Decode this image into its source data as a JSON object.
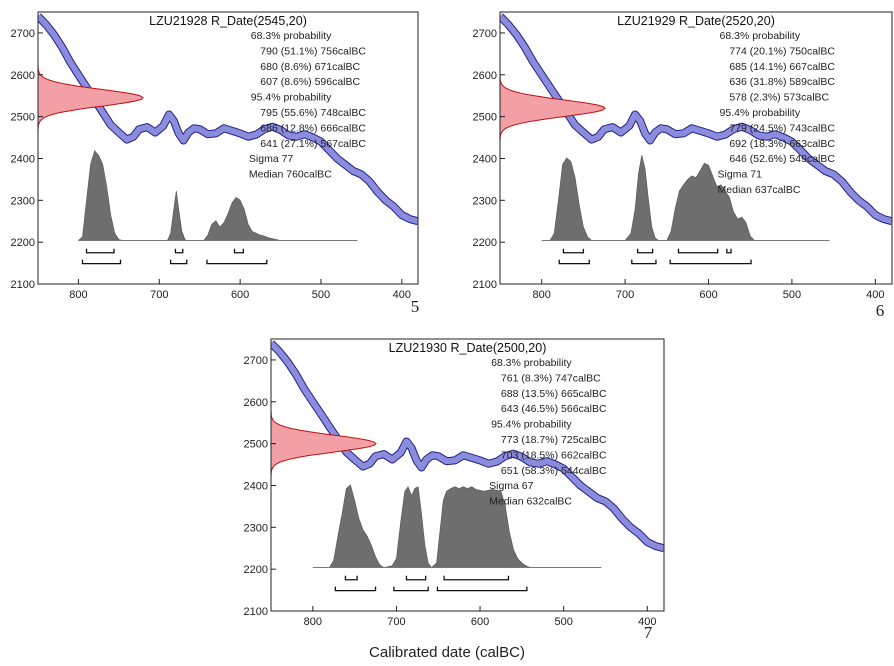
{
  "figure": {
    "xlabel": "Calibrated date (calBC)"
  },
  "chart_data": [
    {
      "type": "area",
      "panel_number": "5",
      "title": "LZU21928 R_Date(2545,20)",
      "xlim": [
        850,
        380
      ],
      "ylim": [
        2100,
        2750
      ],
      "x_ticks": [
        800,
        700,
        600,
        500,
        400
      ],
      "y_ticks": [
        2100,
        2200,
        2300,
        2400,
        2500,
        2600,
        2700
      ],
      "radiocarbon_date": {
        "mean": 2545,
        "error": 20
      },
      "annotation_lines": [
        "68.3% probability",
        "790 (51.1%) 756calBC",
        "680 (8.6%) 671calBC",
        "607 (8.6%) 596calBC",
        "95.4% probability",
        "795 (55.6%) 748calBC",
        "686 (12.8%) 666calBC",
        "641 (27.1%) 567calBC",
        "Sigma 77",
        "Median 760calBC"
      ],
      "calibration_curve": [
        [
          850,
          2740
        ],
        [
          840,
          2720
        ],
        [
          830,
          2695
        ],
        [
          820,
          2665
        ],
        [
          810,
          2630
        ],
        [
          800,
          2600
        ],
        [
          790,
          2570
        ],
        [
          780,
          2540
        ],
        [
          770,
          2510
        ],
        [
          760,
          2480
        ],
        [
          750,
          2462
        ],
        [
          740,
          2445
        ],
        [
          732,
          2452
        ],
        [
          725,
          2470
        ],
        [
          715,
          2475
        ],
        [
          705,
          2462
        ],
        [
          695,
          2478
        ],
        [
          688,
          2505
        ],
        [
          682,
          2490
        ],
        [
          676,
          2460
        ],
        [
          670,
          2443
        ],
        [
          664,
          2462
        ],
        [
          657,
          2472
        ],
        [
          650,
          2470
        ],
        [
          640,
          2458
        ],
        [
          630,
          2460
        ],
        [
          620,
          2472
        ],
        [
          610,
          2466
        ],
        [
          600,
          2460
        ],
        [
          590,
          2452
        ],
        [
          580,
          2457
        ],
        [
          570,
          2470
        ],
        [
          560,
          2476
        ],
        [
          550,
          2468
        ],
        [
          540,
          2455
        ],
        [
          530,
          2452
        ],
        [
          520,
          2458
        ],
        [
          510,
          2450
        ],
        [
          500,
          2440
        ],
        [
          490,
          2420
        ],
        [
          480,
          2400
        ],
        [
          470,
          2385
        ],
        [
          460,
          2370
        ],
        [
          450,
          2362
        ],
        [
          440,
          2345
        ],
        [
          430,
          2320
        ],
        [
          420,
          2300
        ],
        [
          410,
          2285
        ],
        [
          400,
          2265
        ],
        [
          390,
          2255
        ],
        [
          380,
          2250
        ]
      ],
      "calibrated_distribution": [
        [
          800,
          0
        ],
        [
          795,
          0.04
        ],
        [
          790,
          0.45
        ],
        [
          785,
          0.85
        ],
        [
          780,
          1.0
        ],
        [
          775,
          0.95
        ],
        [
          770,
          0.85
        ],
        [
          765,
          0.6
        ],
        [
          760,
          0.28
        ],
        [
          755,
          0.08
        ],
        [
          750,
          0.01
        ],
        [
          745,
          0
        ],
        [
          740,
          0
        ],
        [
          700,
          0
        ],
        [
          690,
          0
        ],
        [
          686,
          0.08
        ],
        [
          682,
          0.35
        ],
        [
          679,
          0.55
        ],
        [
          676,
          0.35
        ],
        [
          672,
          0.1
        ],
        [
          668,
          0.01
        ],
        [
          665,
          0
        ],
        [
          645,
          0
        ],
        [
          640,
          0.06
        ],
        [
          635,
          0.18
        ],
        [
          630,
          0.22
        ],
        [
          625,
          0.15
        ],
        [
          620,
          0.2
        ],
        [
          615,
          0.3
        ],
        [
          610,
          0.42
        ],
        [
          605,
          0.48
        ],
        [
          600,
          0.45
        ],
        [
          595,
          0.35
        ],
        [
          590,
          0.18
        ],
        [
          585,
          0.1
        ],
        [
          580,
          0.08
        ],
        [
          575,
          0.06
        ],
        [
          570,
          0.05
        ],
        [
          565,
          0.03
        ],
        [
          560,
          0.02
        ],
        [
          555,
          0.01
        ],
        [
          550,
          0
        ]
      ],
      "range_68": [
        [
          790,
          756
        ],
        [
          680,
          671
        ],
        [
          607,
          596
        ]
      ],
      "range_95": [
        [
          795,
          748
        ],
        [
          686,
          666
        ],
        [
          641,
          567
        ]
      ]
    },
    {
      "type": "area",
      "panel_number": "6",
      "title": "LZU21929 R_Date(2520,20)",
      "xlim": [
        850,
        380
      ],
      "ylim": [
        2100,
        2750
      ],
      "x_ticks": [
        800,
        700,
        600,
        500,
        400
      ],
      "y_ticks": [
        2100,
        2200,
        2300,
        2400,
        2500,
        2600,
        2700
      ],
      "radiocarbon_date": {
        "mean": 2520,
        "error": 20
      },
      "annotation_lines": [
        "68.3% probability",
        "774 (20.1%) 750calBC",
        "685 (14.1%) 667calBC",
        "636 (31.8%) 589calBC",
        "578 (2.3%) 573calBC",
        "95.4% probability",
        "779 (24.5%) 743calBC",
        "692 (18.3%) 663calBC",
        "646 (52.6%) 549calBC",
        "Sigma 71",
        "Median 637calBC"
      ],
      "calibration_curve": [
        [
          850,
          2740
        ],
        [
          840,
          2720
        ],
        [
          830,
          2695
        ],
        [
          820,
          2665
        ],
        [
          810,
          2630
        ],
        [
          800,
          2600
        ],
        [
          790,
          2570
        ],
        [
          780,
          2540
        ],
        [
          770,
          2510
        ],
        [
          760,
          2480
        ],
        [
          750,
          2462
        ],
        [
          740,
          2445
        ],
        [
          732,
          2452
        ],
        [
          725,
          2470
        ],
        [
          715,
          2475
        ],
        [
          705,
          2462
        ],
        [
          695,
          2478
        ],
        [
          688,
          2505
        ],
        [
          682,
          2490
        ],
        [
          676,
          2460
        ],
        [
          670,
          2443
        ],
        [
          664,
          2462
        ],
        [
          657,
          2472
        ],
        [
          650,
          2470
        ],
        [
          640,
          2458
        ],
        [
          630,
          2460
        ],
        [
          620,
          2472
        ],
        [
          610,
          2466
        ],
        [
          600,
          2460
        ],
        [
          590,
          2452
        ],
        [
          580,
          2457
        ],
        [
          570,
          2470
        ],
        [
          560,
          2476
        ],
        [
          550,
          2468
        ],
        [
          540,
          2455
        ],
        [
          530,
          2452
        ],
        [
          520,
          2458
        ],
        [
          510,
          2450
        ],
        [
          500,
          2440
        ],
        [
          490,
          2420
        ],
        [
          480,
          2400
        ],
        [
          470,
          2385
        ],
        [
          460,
          2370
        ],
        [
          450,
          2362
        ],
        [
          440,
          2345
        ],
        [
          430,
          2320
        ],
        [
          420,
          2300
        ],
        [
          410,
          2285
        ],
        [
          400,
          2265
        ],
        [
          390,
          2255
        ],
        [
          380,
          2250
        ]
      ],
      "calibrated_distribution": [
        [
          790,
          0
        ],
        [
          785,
          0.08
        ],
        [
          780,
          0.45
        ],
        [
          775,
          0.85
        ],
        [
          770,
          0.92
        ],
        [
          765,
          0.88
        ],
        [
          760,
          0.7
        ],
        [
          755,
          0.4
        ],
        [
          750,
          0.15
        ],
        [
          745,
          0.04
        ],
        [
          740,
          0
        ],
        [
          700,
          0
        ],
        [
          693,
          0.08
        ],
        [
          688,
          0.35
        ],
        [
          684,
          0.75
        ],
        [
          680,
          0.95
        ],
        [
          676,
          0.8
        ],
        [
          672,
          0.45
        ],
        [
          668,
          0.15
        ],
        [
          664,
          0.03
        ],
        [
          660,
          0
        ],
        [
          650,
          0
        ],
        [
          645,
          0.1
        ],
        [
          640,
          0.35
        ],
        [
          635,
          0.55
        ],
        [
          630,
          0.62
        ],
        [
          625,
          0.68
        ],
        [
          620,
          0.72
        ],
        [
          615,
          0.7
        ],
        [
          610,
          0.78
        ],
        [
          605,
          0.86
        ],
        [
          600,
          0.84
        ],
        [
          595,
          0.72
        ],
        [
          590,
          0.6
        ],
        [
          585,
          0.62
        ],
        [
          580,
          0.55
        ],
        [
          575,
          0.48
        ],
        [
          570,
          0.32
        ],
        [
          565,
          0.24
        ],
        [
          560,
          0.26
        ],
        [
          555,
          0.2
        ],
        [
          550,
          0.05
        ],
        [
          545,
          0
        ]
      ],
      "range_68": [
        [
          774,
          750
        ],
        [
          685,
          667
        ],
        [
          636,
          589
        ],
        [
          578,
          573
        ]
      ],
      "range_95": [
        [
          779,
          743
        ],
        [
          692,
          663
        ],
        [
          646,
          549
        ]
      ]
    },
    {
      "type": "area",
      "panel_number": "7",
      "title": "LZU21930 R_Date(2500,20)",
      "xlim": [
        850,
        380
      ],
      "ylim": [
        2100,
        2750
      ],
      "x_ticks": [
        800,
        700,
        600,
        500,
        400
      ],
      "y_ticks": [
        2100,
        2200,
        2300,
        2400,
        2500,
        2600,
        2700
      ],
      "radiocarbon_date": {
        "mean": 2500,
        "error": 20
      },
      "annotation_lines": [
        "68.3% probability",
        "761 (8.3%) 747calBC",
        "688 (13.5%) 665calBC",
        "643 (46.5%) 566calBC",
        "95.4% probability",
        "773 (18.7%) 725calBC",
        "703 (18.5%) 662calBC",
        "651 (58.3%) 544calBC",
        "Sigma 67",
        "Median 632calBC"
      ],
      "calibration_curve": [
        [
          850,
          2740
        ],
        [
          840,
          2720
        ],
        [
          830,
          2695
        ],
        [
          820,
          2665
        ],
        [
          810,
          2630
        ],
        [
          800,
          2600
        ],
        [
          790,
          2570
        ],
        [
          780,
          2540
        ],
        [
          770,
          2510
        ],
        [
          760,
          2480
        ],
        [
          750,
          2462
        ],
        [
          740,
          2445
        ],
        [
          732,
          2452
        ],
        [
          725,
          2470
        ],
        [
          715,
          2475
        ],
        [
          705,
          2462
        ],
        [
          695,
          2478
        ],
        [
          688,
          2505
        ],
        [
          682,
          2490
        ],
        [
          676,
          2460
        ],
        [
          670,
          2443
        ],
        [
          664,
          2462
        ],
        [
          657,
          2472
        ],
        [
          650,
          2470
        ],
        [
          640,
          2458
        ],
        [
          630,
          2460
        ],
        [
          620,
          2472
        ],
        [
          610,
          2466
        ],
        [
          600,
          2460
        ],
        [
          590,
          2452
        ],
        [
          580,
          2457
        ],
        [
          570,
          2470
        ],
        [
          560,
          2476
        ],
        [
          550,
          2468
        ],
        [
          540,
          2455
        ],
        [
          530,
          2452
        ],
        [
          520,
          2458
        ],
        [
          510,
          2450
        ],
        [
          500,
          2440
        ],
        [
          490,
          2420
        ],
        [
          480,
          2400
        ],
        [
          470,
          2385
        ],
        [
          460,
          2370
        ],
        [
          450,
          2362
        ],
        [
          440,
          2345
        ],
        [
          430,
          2320
        ],
        [
          420,
          2300
        ],
        [
          410,
          2285
        ],
        [
          400,
          2265
        ],
        [
          390,
          2255
        ],
        [
          380,
          2250
        ]
      ],
      "calibrated_distribution": [
        [
          780,
          0
        ],
        [
          775,
          0.08
        ],
        [
          770,
          0.35
        ],
        [
          765,
          0.6
        ],
        [
          760,
          0.88
        ],
        [
          755,
          0.92
        ],
        [
          750,
          0.75
        ],
        [
          745,
          0.55
        ],
        [
          740,
          0.42
        ],
        [
          735,
          0.35
        ],
        [
          730,
          0.25
        ],
        [
          725,
          0.12
        ],
        [
          720,
          0.03
        ],
        [
          715,
          0
        ],
        [
          705,
          0.02
        ],
        [
          700,
          0.1
        ],
        [
          695,
          0.5
        ],
        [
          690,
          0.85
        ],
        [
          686,
          0.9
        ],
        [
          682,
          0.8
        ],
        [
          678,
          0.88
        ],
        [
          674,
          0.9
        ],
        [
          670,
          0.6
        ],
        [
          666,
          0.25
        ],
        [
          662,
          0.05
        ],
        [
          658,
          0
        ],
        [
          652,
          0.05
        ],
        [
          648,
          0.4
        ],
        [
          644,
          0.75
        ],
        [
          640,
          0.85
        ],
        [
          635,
          0.88
        ],
        [
          630,
          0.9
        ],
        [
          625,
          0.88
        ],
        [
          620,
          0.9
        ],
        [
          615,
          0.88
        ],
        [
          610,
          0.9
        ],
        [
          605,
          0.87
        ],
        [
          600,
          0.86
        ],
        [
          595,
          0.85
        ],
        [
          590,
          0.86
        ],
        [
          585,
          0.87
        ],
        [
          580,
          0.86
        ],
        [
          575,
          0.85
        ],
        [
          570,
          0.7
        ],
        [
          565,
          0.4
        ],
        [
          560,
          0.2
        ],
        [
          555,
          0.1
        ],
        [
          550,
          0.05
        ],
        [
          545,
          0.02
        ],
        [
          540,
          0
        ]
      ],
      "range_68": [
        [
          761,
          747
        ],
        [
          688,
          665
        ],
        [
          643,
          566
        ]
      ],
      "range_95": [
        [
          773,
          725
        ],
        [
          703,
          662
        ],
        [
          651,
          544
        ]
      ]
    }
  ]
}
